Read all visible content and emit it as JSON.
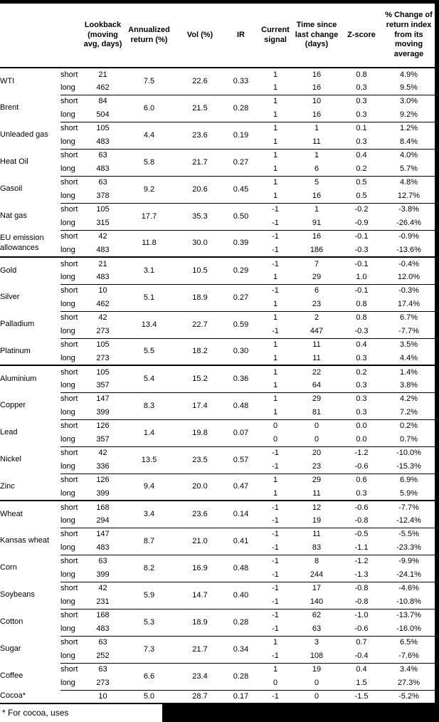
{
  "page": {
    "background": "#ffffff",
    "frame_color": "#000000"
  },
  "table": {
    "column_headers": [
      "Lookback (moving avg, days)",
      "Annualized return (%)",
      "Vol (%)",
      "IR",
      "Current signal",
      "Time since last change (days)",
      "Z-score",
      "% Change of return index from its moving average"
    ],
    "commodities": [
      {
        "name": "WTI",
        "annualized_return": "7.5",
        "vol": "22.6",
        "ir": "0.33",
        "section_end": false,
        "rows": [
          {
            "horizon": "short",
            "lookback": "21",
            "signal": "1",
            "time_since_change": "16",
            "z_score": "0.8",
            "pct_change": "4.9%"
          },
          {
            "horizon": "long",
            "lookback": "462",
            "signal": "1",
            "time_since_change": "16",
            "z_score": "0.3",
            "pct_change": "9.5%"
          }
        ]
      },
      {
        "name": "Brent",
        "annualized_return": "6.0",
        "vol": "21.5",
        "ir": "0.28",
        "section_end": false,
        "rows": [
          {
            "horizon": "short",
            "lookback": "84",
            "signal": "1",
            "time_since_change": "10",
            "z_score": "0.3",
            "pct_change": "3.0%"
          },
          {
            "horizon": "long",
            "lookback": "504",
            "signal": "1",
            "time_since_change": "16",
            "z_score": "0.3",
            "pct_change": "9.2%"
          }
        ]
      },
      {
        "name": "Unleaded gas",
        "annualized_return": "4.4",
        "vol": "23.6",
        "ir": "0.19",
        "section_end": false,
        "rows": [
          {
            "horizon": "short",
            "lookback": "105",
            "signal": "1",
            "time_since_change": "1",
            "z_score": "0.1",
            "pct_change": "1.2%"
          },
          {
            "horizon": "long",
            "lookback": "483",
            "signal": "1",
            "time_since_change": "11",
            "z_score": "0.3",
            "pct_change": "8.4%"
          }
        ]
      },
      {
        "name": "Heat Oil",
        "annualized_return": "5.8",
        "vol": "21.7",
        "ir": "0.27",
        "section_end": false,
        "rows": [
          {
            "horizon": "short",
            "lookback": "63",
            "signal": "1",
            "time_since_change": "1",
            "z_score": "0.4",
            "pct_change": "4.0%"
          },
          {
            "horizon": "long",
            "lookback": "483",
            "signal": "1",
            "time_since_change": "6",
            "z_score": "0.2",
            "pct_change": "5.7%"
          }
        ]
      },
      {
        "name": "Gasoil",
        "annualized_return": "9.2",
        "vol": "20.6",
        "ir": "0.45",
        "section_end": false,
        "rows": [
          {
            "horizon": "short",
            "lookback": "63",
            "signal": "1",
            "time_since_change": "5",
            "z_score": "0.5",
            "pct_change": "4.8%"
          },
          {
            "horizon": "long",
            "lookback": "378",
            "signal": "1",
            "time_since_change": "16",
            "z_score": "0.5",
            "pct_change": "12.7%"
          }
        ]
      },
      {
        "name": "Nat gas",
        "annualized_return": "17.7",
        "vol": "35.3",
        "ir": "0.50",
        "section_end": false,
        "rows": [
          {
            "horizon": "short",
            "lookback": "105",
            "signal": "-1",
            "time_since_change": "1",
            "z_score": "-0.2",
            "pct_change": "-3.8%"
          },
          {
            "horizon": "long",
            "lookback": "315",
            "signal": "-1",
            "time_since_change": "91",
            "z_score": "-0.9",
            "pct_change": "-26.4%"
          }
        ]
      },
      {
        "name": "EU emission allowances",
        "annualized_return": "11.8",
        "vol": "30.0",
        "ir": "0.39",
        "section_end": true,
        "rows": [
          {
            "horizon": "short",
            "lookback": "42",
            "signal": "-1",
            "time_since_change": "16",
            "z_score": "-0.1",
            "pct_change": "-0.9%"
          },
          {
            "horizon": "long",
            "lookback": "483",
            "signal": "-1",
            "time_since_change": "186",
            "z_score": "-0.3",
            "pct_change": "-13.6%"
          }
        ]
      },
      {
        "name": "Gold",
        "annualized_return": "3.1",
        "vol": "10.5",
        "ir": "0.29",
        "section_end": false,
        "rows": [
          {
            "horizon": "short",
            "lookback": "21",
            "signal": "-1",
            "time_since_change": "7",
            "z_score": "-0.1",
            "pct_change": "-0.4%"
          },
          {
            "horizon": "long",
            "lookback": "483",
            "signal": "1",
            "time_since_change": "29",
            "z_score": "1.0",
            "pct_change": "12.0%"
          }
        ]
      },
      {
        "name": "Silver",
        "annualized_return": "5.1",
        "vol": "18.9",
        "ir": "0.27",
        "section_end": false,
        "rows": [
          {
            "horizon": "short",
            "lookback": "10",
            "signal": "-1",
            "time_since_change": "6",
            "z_score": "-0.1",
            "pct_change": "-0.3%"
          },
          {
            "horizon": "long",
            "lookback": "462",
            "signal": "1",
            "time_since_change": "23",
            "z_score": "0.8",
            "pct_change": "17.4%"
          }
        ]
      },
      {
        "name": "Palladium",
        "annualized_return": "13.4",
        "vol": "22.7",
        "ir": "0.59",
        "section_end": false,
        "rows": [
          {
            "horizon": "short",
            "lookback": "42",
            "signal": "1",
            "time_since_change": "2",
            "z_score": "0.8",
            "pct_change": "6.7%"
          },
          {
            "horizon": "long",
            "lookback": "273",
            "signal": "-1",
            "time_since_change": "447",
            "z_score": "-0.3",
            "pct_change": "-7.7%"
          }
        ]
      },
      {
        "name": "Platinum",
        "annualized_return": "5.5",
        "vol": "18.2",
        "ir": "0.30",
        "section_end": true,
        "rows": [
          {
            "horizon": "short",
            "lookback": "105",
            "signal": "1",
            "time_since_change": "11",
            "z_score": "0.4",
            "pct_change": "3.5%"
          },
          {
            "horizon": "long",
            "lookback": "273",
            "signal": "1",
            "time_since_change": "11",
            "z_score": "0.3",
            "pct_change": "4.4%"
          }
        ]
      },
      {
        "name": "Aluminium",
        "annualized_return": "5.4",
        "vol": "15.2",
        "ir": "0.36",
        "section_end": false,
        "rows": [
          {
            "horizon": "short",
            "lookback": "105",
            "signal": "1",
            "time_since_change": "22",
            "z_score": "0.2",
            "pct_change": "1.4%"
          },
          {
            "horizon": "long",
            "lookback": "357",
            "signal": "1",
            "time_since_change": "64",
            "z_score": "0.3",
            "pct_change": "3.8%"
          }
        ]
      },
      {
        "name": "Copper",
        "annualized_return": "8.3",
        "vol": "17.4",
        "ir": "0.48",
        "section_end": false,
        "rows": [
          {
            "horizon": "short",
            "lookback": "147",
            "signal": "1",
            "time_since_change": "29",
            "z_score": "0.3",
            "pct_change": "4.2%"
          },
          {
            "horizon": "long",
            "lookback": "399",
            "signal": "1",
            "time_since_change": "81",
            "z_score": "0.3",
            "pct_change": "7.2%"
          }
        ]
      },
      {
        "name": "Lead",
        "annualized_return": "1.4",
        "vol": "19.8",
        "ir": "0.07",
        "section_end": false,
        "rows": [
          {
            "horizon": "short",
            "lookback": "126",
            "signal": "0",
            "time_since_change": "0",
            "z_score": "0.0",
            "pct_change": "0.2%"
          },
          {
            "horizon": "long",
            "lookback": "357",
            "signal": "0",
            "time_since_change": "0",
            "z_score": "0.0",
            "pct_change": "0.7%"
          }
        ]
      },
      {
        "name": "Nickel",
        "annualized_return": "13.5",
        "vol": "23.5",
        "ir": "0.57",
        "section_end": false,
        "rows": [
          {
            "horizon": "short",
            "lookback": "42",
            "signal": "-1",
            "time_since_change": "20",
            "z_score": "-1.2",
            "pct_change": "-10.0%"
          },
          {
            "horizon": "long",
            "lookback": "336",
            "signal": "-1",
            "time_since_change": "23",
            "z_score": "-0.6",
            "pct_change": "-15.3%"
          }
        ]
      },
      {
        "name": "Zinc",
        "annualized_return": "9.4",
        "vol": "20.0",
        "ir": "0.47",
        "section_end": true,
        "rows": [
          {
            "horizon": "short",
            "lookback": "126",
            "signal": "1",
            "time_since_change": "29",
            "z_score": "0.6",
            "pct_change": "6.9%"
          },
          {
            "horizon": "long",
            "lookback": "399",
            "signal": "1",
            "time_since_change": "11",
            "z_score": "0.3",
            "pct_change": "5.9%"
          }
        ]
      },
      {
        "name": "Wheat",
        "annualized_return": "3.4",
        "vol": "23.6",
        "ir": "0.14",
        "section_end": false,
        "rows": [
          {
            "horizon": "short",
            "lookback": "168",
            "signal": "-1",
            "time_since_change": "12",
            "z_score": "-0.6",
            "pct_change": "-7.7%"
          },
          {
            "horizon": "long",
            "lookback": "294",
            "signal": "-1",
            "time_since_change": "19",
            "z_score": "-0.8",
            "pct_change": "-12.4%"
          }
        ]
      },
      {
        "name": "Kansas wheat",
        "annualized_return": "8.7",
        "vol": "21.0",
        "ir": "0.41",
        "section_end": false,
        "rows": [
          {
            "horizon": "short",
            "lookback": "147",
            "signal": "-1",
            "time_since_change": "11",
            "z_score": "-0.5",
            "pct_change": "-5.5%"
          },
          {
            "horizon": "long",
            "lookback": "483",
            "signal": "-1",
            "time_since_change": "83",
            "z_score": "-1.1",
            "pct_change": "-23.3%"
          }
        ]
      },
      {
        "name": "Corn",
        "annualized_return": "8.2",
        "vol": "16.9",
        "ir": "0.48",
        "section_end": false,
        "rows": [
          {
            "horizon": "short",
            "lookback": "63",
            "signal": "-1",
            "time_since_change": "8",
            "z_score": "-1.2",
            "pct_change": "-9.9%"
          },
          {
            "horizon": "long",
            "lookback": "399",
            "signal": "-1",
            "time_since_change": "244",
            "z_score": "-1.3",
            "pct_change": "-24.1%"
          }
        ]
      },
      {
        "name": "Soybeans",
        "annualized_return": "5.9",
        "vol": "14.7",
        "ir": "0.40",
        "section_end": false,
        "rows": [
          {
            "horizon": "short",
            "lookback": "42",
            "signal": "-1",
            "time_since_change": "17",
            "z_score": "-0.8",
            "pct_change": "-4.6%"
          },
          {
            "horizon": "long",
            "lookback": "231",
            "signal": "-1",
            "time_since_change": "140",
            "z_score": "-0.8",
            "pct_change": "-10.8%"
          }
        ]
      },
      {
        "name": "Cotton",
        "annualized_return": "5.3",
        "vol": "18.9",
        "ir": "0.28",
        "section_end": false,
        "rows": [
          {
            "horizon": "short",
            "lookback": "168",
            "signal": "-1",
            "time_since_change": "62",
            "z_score": "-1.0",
            "pct_change": "-13.7%"
          },
          {
            "horizon": "long",
            "lookback": "483",
            "signal": "-1",
            "time_since_change": "63",
            "z_score": "-0.6",
            "pct_change": "-16.0%"
          }
        ]
      },
      {
        "name": "Sugar",
        "annualized_return": "7.3",
        "vol": "21.7",
        "ir": "0.34",
        "section_end": false,
        "rows": [
          {
            "horizon": "short",
            "lookback": "63",
            "signal": "1",
            "time_since_change": "3",
            "z_score": "0.7",
            "pct_change": "6.5%"
          },
          {
            "horizon": "long",
            "lookback": "252",
            "signal": "-1",
            "time_since_change": "108",
            "z_score": "-0.4",
            "pct_change": "-7.6%"
          }
        ]
      },
      {
        "name": "Coffee",
        "annualized_return": "6.6",
        "vol": "23.4",
        "ir": "0.28",
        "section_end": false,
        "rows": [
          {
            "horizon": "short",
            "lookback": "63",
            "signal": "1",
            "time_since_change": "19",
            "z_score": "0.4",
            "pct_change": "3.4%"
          },
          {
            "horizon": "long",
            "lookback": "273",
            "signal": "0",
            "time_since_change": "0",
            "z_score": "1.5",
            "pct_change": "27.3%"
          }
        ]
      },
      {
        "name": "Cocoa*",
        "annualized_return": "5.0",
        "vol": "28.7",
        "ir": "0.17",
        "section_end": false,
        "rows": [
          {
            "horizon": "",
            "lookback": "10",
            "signal": "-1",
            "time_since_change": "0",
            "z_score": "-1.5",
            "pct_change": "-5.2%"
          }
        ]
      }
    ]
  },
  "footnote": {
    "text": "* For cocoa, uses",
    "redacted": true
  }
}
